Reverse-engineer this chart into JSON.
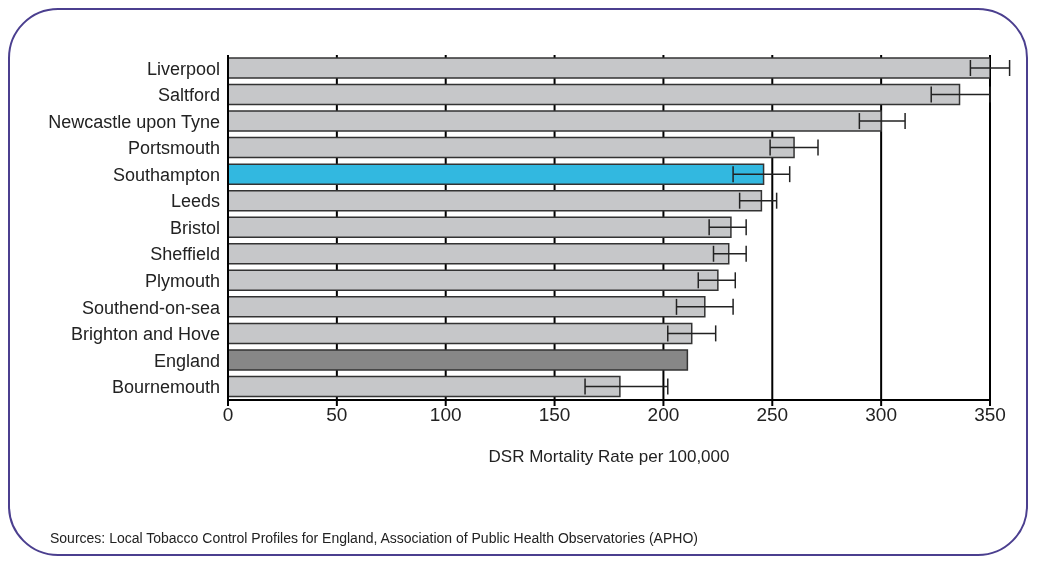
{
  "chart_data": {
    "type": "bar",
    "orientation": "horizontal",
    "xlabel": "DSR Mortality Rate per 100,000",
    "categories": [
      "Liverpool",
      "Saltford",
      "Newcastle upon Tyne",
      "Portsmouth",
      "Southampton",
      "Leeds",
      "Bristol",
      "Sheffield",
      "Plymouth",
      "Southend-on-sea",
      "Brighton and Hove",
      "England",
      "Bournemouth"
    ],
    "values": [
      350,
      336,
      300,
      260,
      246,
      245,
      231,
      230,
      225,
      219,
      213,
      211,
      180
    ],
    "errors": [
      [
        341,
        359
      ],
      [
        323,
        350
      ],
      [
        290,
        311
      ],
      [
        249,
        271
      ],
      [
        232,
        258
      ],
      [
        235,
        252
      ],
      [
        221,
        238
      ],
      [
        223,
        238
      ],
      [
        216,
        233
      ],
      [
        206,
        232
      ],
      [
        202,
        224
      ],
      null,
      [
        164,
        202
      ]
    ],
    "colors": [
      "#c6c7c9",
      "#c6c7c9",
      "#c6c7c9",
      "#c6c7c9",
      "#32b8e0",
      "#c6c7c9",
      "#c6c7c9",
      "#c6c7c9",
      "#c6c7c9",
      "#c6c7c9",
      "#c6c7c9",
      "#878787",
      "#c6c7c9"
    ],
    "xlim": [
      0,
      350
    ],
    "xticks": [
      0,
      50,
      100,
      150,
      200,
      250,
      300,
      350
    ],
    "grid": "x",
    "annotations": [
      "Sources: Local Tobacco Control Profiles for England, Association of Public Health Observatories (APHO)"
    ]
  }
}
